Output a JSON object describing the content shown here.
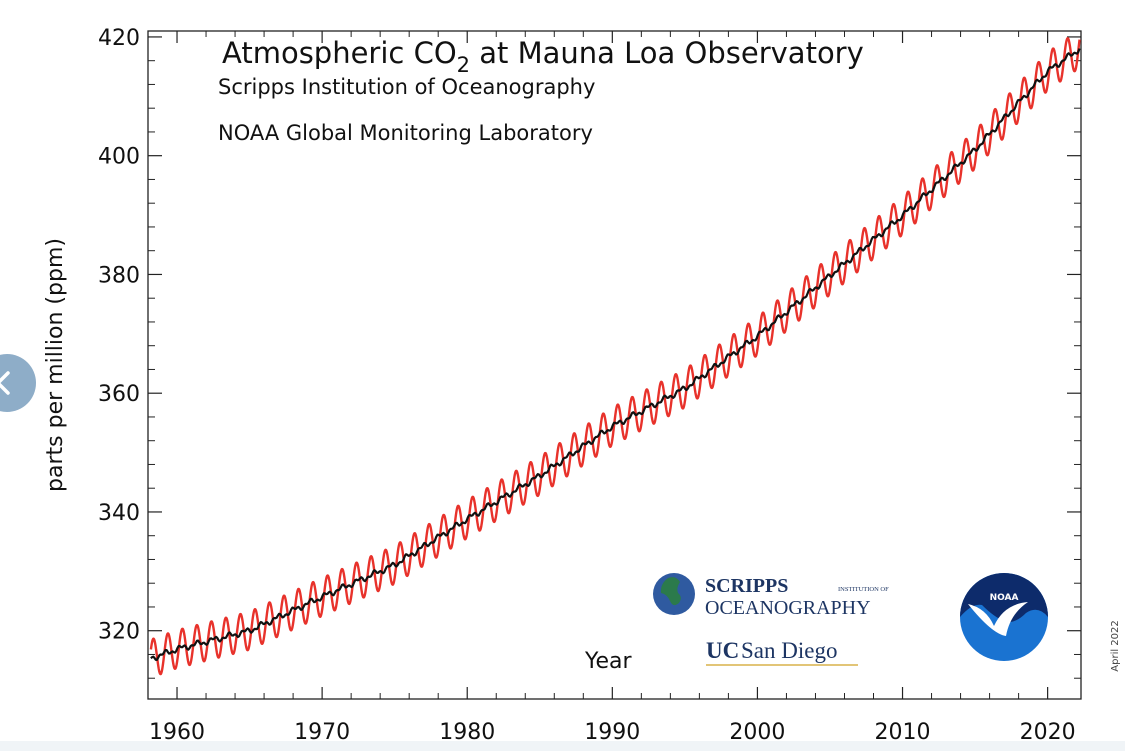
{
  "chart_data": {
    "type": "line",
    "title": "Atmospheric CO2 at Mauna Loa Observatory",
    "title_parts": {
      "prefix": "Atmospheric CO",
      "subscript": "2",
      "suffix": " at Mauna Loa Observatory"
    },
    "subtitles": [
      "Scripps Institution of Oceanography",
      "NOAA Global Monitoring Laboratory"
    ],
    "xlabel": "Year",
    "ylabel": "parts per million (ppm)",
    "xlim": [
      1958,
      2022.3
    ],
    "ylim": [
      308.5,
      421
    ],
    "x_ticks": [
      1960,
      1970,
      1980,
      1990,
      2000,
      2010,
      2020
    ],
    "y_ticks": [
      320,
      340,
      360,
      380,
      400,
      420
    ],
    "x_tick_labels": [
      "1960",
      "1970",
      "1980",
      "1990",
      "2000",
      "2010",
      "2020"
    ],
    "y_tick_labels": [
      "320",
      "340",
      "360",
      "380",
      "400",
      "420"
    ],
    "grid": false,
    "series": [
      {
        "name": "monthly",
        "color": "#e8322b",
        "kind": "monthly-seasonal",
        "seasonal_amplitude_ppm": 3.2,
        "note": "monthly mean, oscillates around the annual trend"
      },
      {
        "name": "trend",
        "color": "#111111",
        "kind": "seasonally-corrected",
        "x": [
          1958.2,
          1960,
          1965,
          1970,
          1975,
          1980,
          1985,
          1990,
          1995,
          2000,
          2005,
          2010,
          2015,
          2020,
          2022.2
        ],
        "y": [
          315.3,
          316.9,
          320.0,
          325.7,
          331.1,
          338.8,
          346.1,
          354.4,
          360.8,
          369.6,
          379.8,
          389.9,
          401.0,
          414.2,
          418.0
        ]
      }
    ],
    "footnote": "April 2022"
  },
  "logos": {
    "scripps": {
      "line1": "SCRIPPS",
      "line1_small": "INSTITUTION OF",
      "line2": "OCEANOGRAPHY"
    },
    "ucsd": {
      "uc": "UC",
      "name": "San Diego"
    },
    "noaa": {
      "label": "NOAA"
    }
  },
  "colors": {
    "monthly": "#e8322b",
    "trend": "#111111",
    "nav_button": "#6e96b9",
    "noaa_blue": "#1565c0",
    "noaa_navy": "#0d2b6b"
  }
}
